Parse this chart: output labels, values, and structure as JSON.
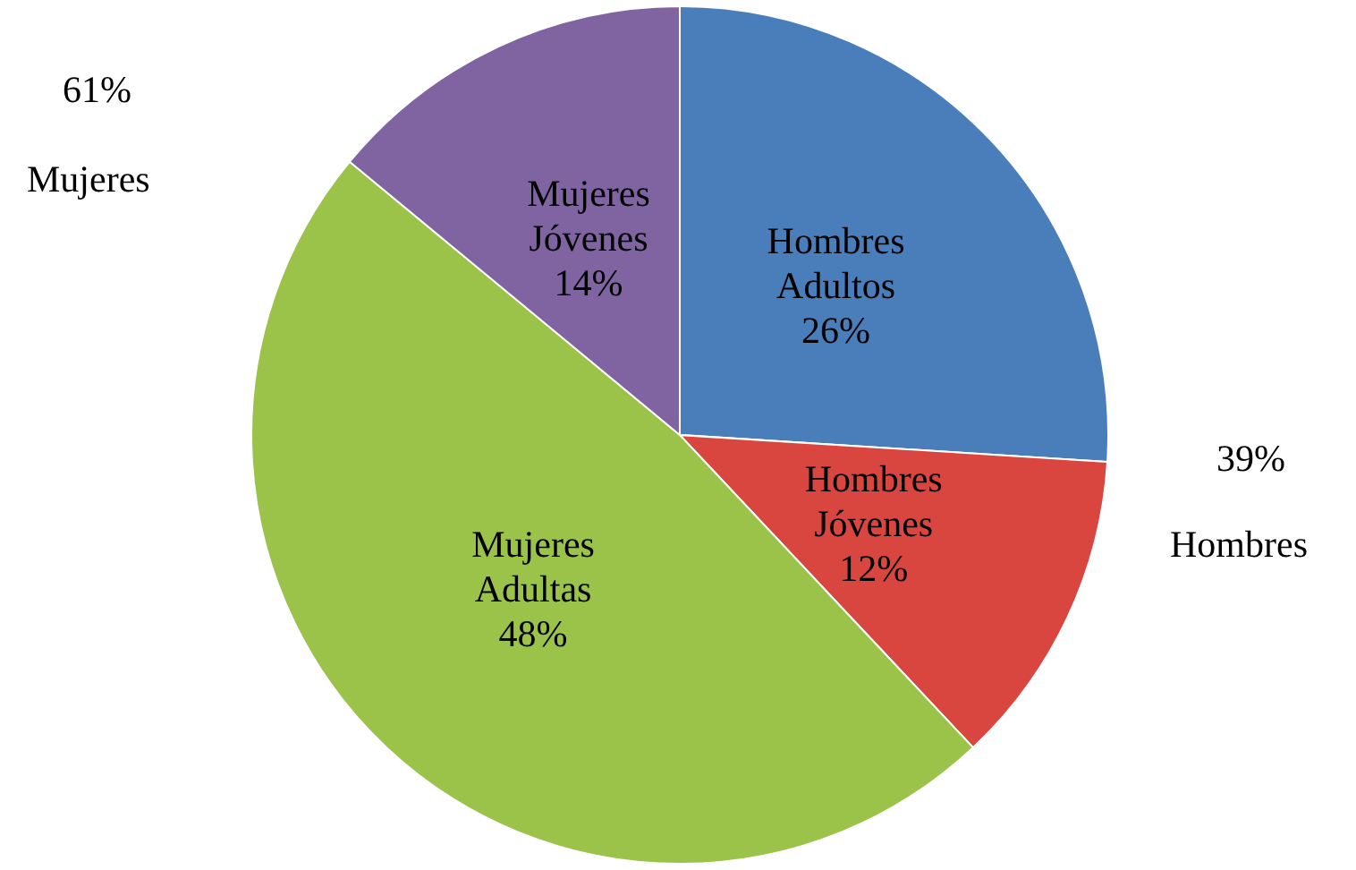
{
  "chart_data": {
    "type": "pie",
    "categories": [
      "Hombres Adultos",
      "Hombres Jóvenes",
      "Mujeres Adultas",
      "Mujeres Jóvenes"
    ],
    "values": [
      26,
      12,
      48,
      14
    ],
    "colors": [
      "#4a7ebb",
      "#d9463f",
      "#9bc34a",
      "#8064a2"
    ],
    "value_labels": [
      "26%",
      "12%",
      "48%",
      "14%"
    ],
    "legend": false,
    "annotations": [
      "61%",
      "Mujeres",
      "39%",
      "Hombres"
    ]
  }
}
